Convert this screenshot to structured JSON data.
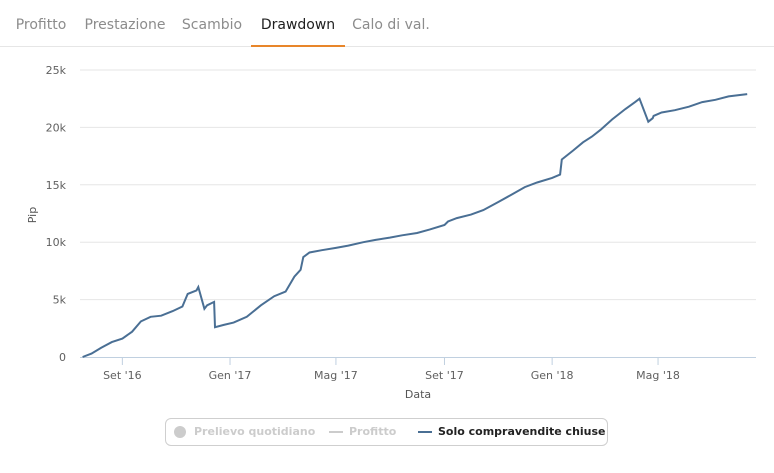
{
  "tabs": [
    {
      "label": "Profitto",
      "active": false
    },
    {
      "label": "Prestazione",
      "active": false
    },
    {
      "label": "Scambio",
      "active": false
    },
    {
      "label": "Drawdown",
      "active": true
    },
    {
      "label": "Calo di val.",
      "active": false
    }
  ],
  "colors": {
    "accent": "#e8862a",
    "series_line": "#4a6f94",
    "legend_hidden": "#cccccc",
    "grid": "#e6e6e6"
  },
  "legend": [
    {
      "label": "Prelievo quotidiano",
      "icon": "circle-marker-icon",
      "visible": false
    },
    {
      "label": "Profitto",
      "icon": "line-marker-icon",
      "visible": false
    },
    {
      "label": "Solo compravendite chiuse",
      "icon": "line-marker-icon",
      "visible": true
    }
  ],
  "chart_data": {
    "type": "line",
    "xlabel": "Data",
    "ylabel": "Pip",
    "ylim": [
      0,
      25000
    ],
    "xlim": [
      "2016-07-15",
      "2018-08-20"
    ],
    "x_ticks": [
      {
        "date": "2016-09-01",
        "label": "Set '16"
      },
      {
        "date": "2017-01-01",
        "label": "Gen '17"
      },
      {
        "date": "2017-05-01",
        "label": "Mag '17"
      },
      {
        "date": "2017-09-01",
        "label": "Set '17"
      },
      {
        "date": "2018-01-01",
        "label": "Gen '18"
      },
      {
        "date": "2018-05-01",
        "label": "Mag '18"
      }
    ],
    "y_ticks": [
      {
        "value": 0,
        "label": "0"
      },
      {
        "value": 5000,
        "label": "5k"
      },
      {
        "value": 10000,
        "label": "10k"
      },
      {
        "value": 15000,
        "label": "15k"
      },
      {
        "value": 20000,
        "label": "20k"
      },
      {
        "value": 25000,
        "label": "25k"
      }
    ],
    "grid": true,
    "legend_position": "bottom-center",
    "series": [
      {
        "name": "Solo compravendite chiuse",
        "x": [
          "2016-07-18",
          "2016-07-28",
          "2016-08-08",
          "2016-08-20",
          "2016-09-01",
          "2016-09-12",
          "2016-09-22",
          "2016-10-03",
          "2016-10-15",
          "2016-10-28",
          "2016-11-08",
          "2016-11-14",
          "2016-11-24",
          "2016-11-26",
          "2016-12-03",
          "2016-12-06",
          "2016-12-14",
          "2016-12-15",
          "2016-12-25",
          "2017-01-05",
          "2017-01-20",
          "2017-02-05",
          "2017-02-20",
          "2017-03-05",
          "2017-03-15",
          "2017-03-22",
          "2017-03-25",
          "2017-04-01",
          "2017-04-15",
          "2017-05-01",
          "2017-05-15",
          "2017-06-01",
          "2017-06-15",
          "2017-07-01",
          "2017-07-15",
          "2017-08-01",
          "2017-08-15",
          "2017-09-01",
          "2017-09-05",
          "2017-09-15",
          "2017-10-01",
          "2017-10-15",
          "2017-11-01",
          "2017-11-15",
          "2017-12-01",
          "2017-12-15",
          "2018-01-01",
          "2018-01-10",
          "2018-01-12",
          "2018-01-25",
          "2018-02-05",
          "2018-02-15",
          "2018-02-25",
          "2018-03-10",
          "2018-03-25",
          "2018-04-05",
          "2018-04-10",
          "2018-04-20",
          "2018-04-25",
          "2018-04-26",
          "2018-05-05",
          "2018-05-20",
          "2018-06-05",
          "2018-06-20",
          "2018-07-05",
          "2018-07-20",
          "2018-08-10"
        ],
        "values": [
          0,
          300,
          800,
          1300,
          1600,
          2200,
          3100,
          3500,
          3600,
          4000,
          4400,
          5500,
          5800,
          6100,
          4200,
          4500,
          4800,
          2600,
          2800,
          3000,
          3500,
          4500,
          5300,
          5700,
          7000,
          7600,
          8700,
          9100,
          9300,
          9500,
          9700,
          10000,
          10200,
          10400,
          10600,
          10800,
          11100,
          11500,
          11800,
          12100,
          12400,
          12800,
          13500,
          14100,
          14800,
          15200,
          15600,
          15900,
          17200,
          18000,
          18700,
          19200,
          19800,
          20700,
          21600,
          22200,
          22500,
          20500,
          20800,
          21000,
          21300,
          21500,
          21800,
          22200,
          22400,
          22700,
          22900
        ]
      }
    ]
  }
}
